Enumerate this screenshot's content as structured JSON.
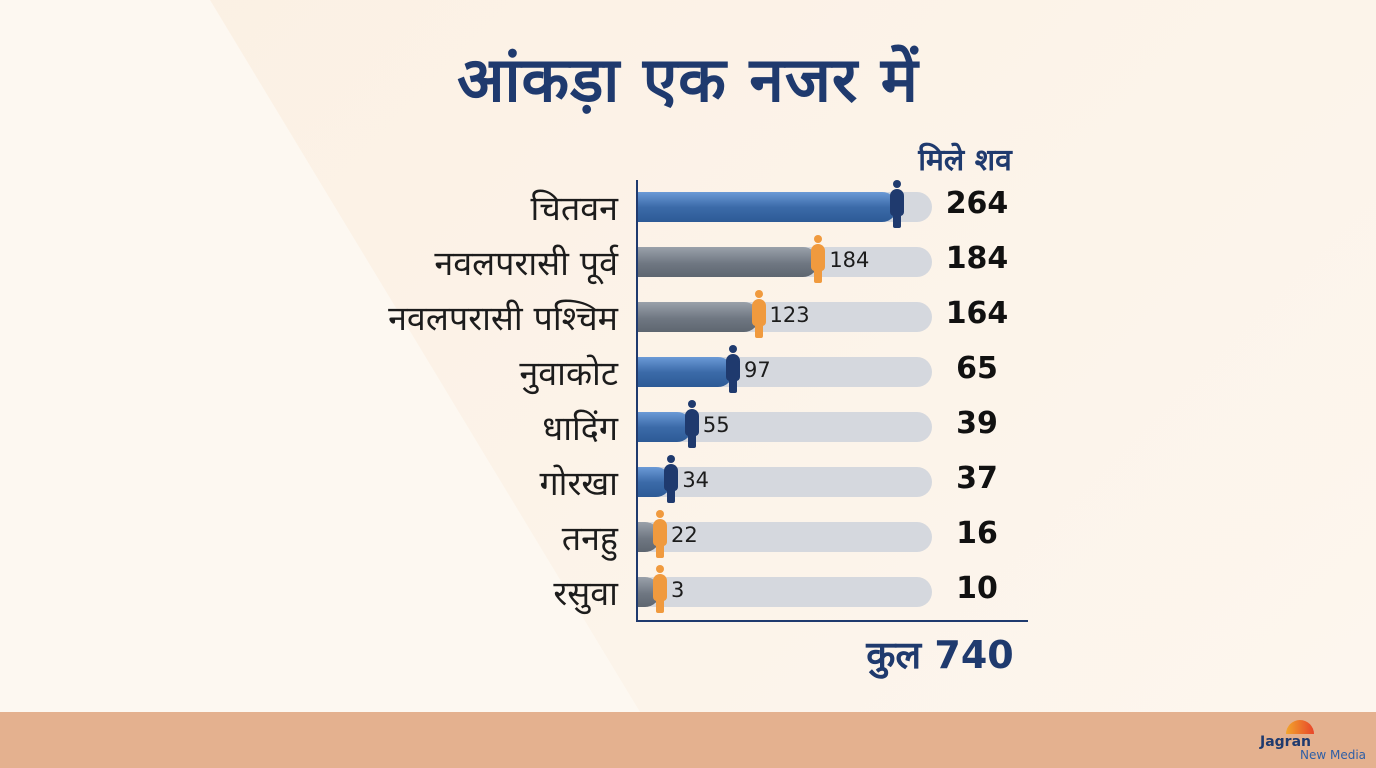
{
  "title": "आंकड़ा एक नजर में",
  "column_header": "मिले शव",
  "total_label": "कुल 740",
  "colors": {
    "title": "#1f3a6e",
    "blue_bar": "#3c6ba9",
    "grey_bar": "#6f7782",
    "track": "#d5d8de",
    "navy_person": "#1f3a6e",
    "orange_person": "#f09a3e"
  },
  "chart_data": {
    "type": "bar",
    "orientation": "horizontal",
    "title": "आंकड़ा एक नजर में",
    "value_column_label": "मिले शव",
    "categories": [
      "चितवन",
      "नवलपरासी पूर्व",
      "नवलपरासी पश्चिम",
      "नुवाकोट",
      "धादिंग",
      "गोरखा",
      "तनहु",
      "रसुवा"
    ],
    "bar_values": [
      264,
      184,
      123,
      97,
      55,
      34,
      22,
      3
    ],
    "bar_labels": [
      "",
      "184",
      "123",
      "97",
      "55",
      "34",
      "22",
      "3"
    ],
    "right_values": [
      "264",
      "184",
      "164",
      "65",
      "39",
      "37",
      "16",
      "10"
    ],
    "bar_styles": [
      "blue",
      "grey",
      "grey",
      "blue",
      "blue",
      "blue",
      "grey",
      "grey"
    ],
    "marker_colors": [
      "navy",
      "orange",
      "orange",
      "navy",
      "navy",
      "navy",
      "orange",
      "orange"
    ],
    "xlim": [
      0,
      300
    ],
    "total": "कुल 740",
    "grid": false,
    "legend": "none"
  },
  "footer": {
    "logo_name": "Jagran",
    "logo_sub": "New Media"
  }
}
